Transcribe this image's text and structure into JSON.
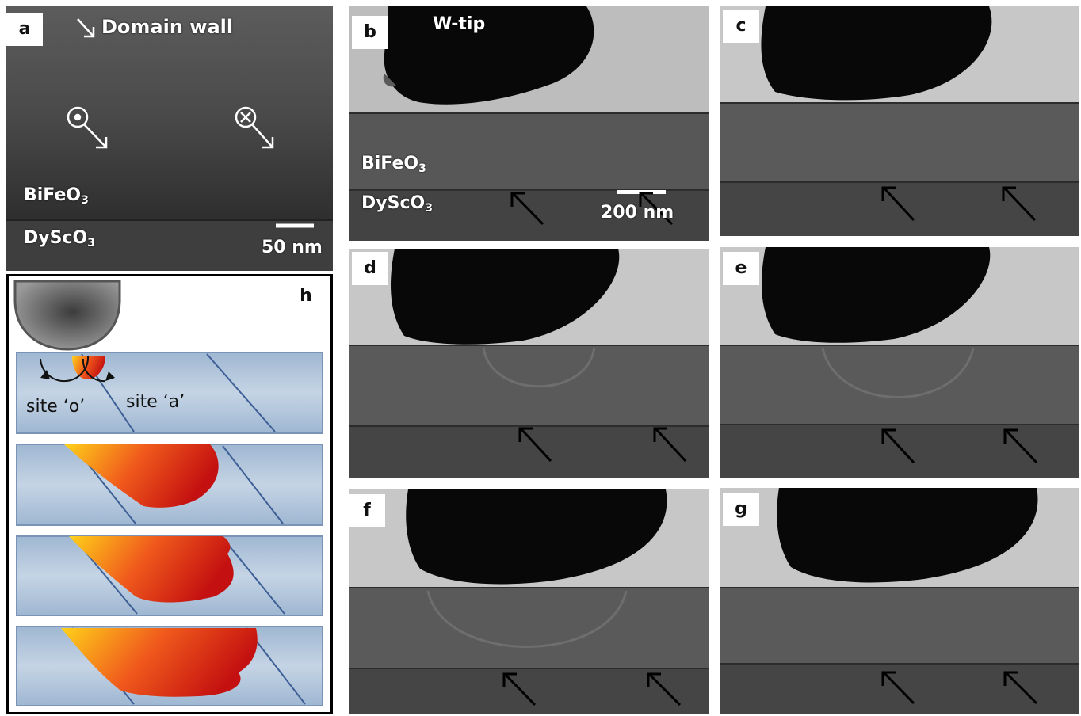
{
  "figure": {
    "panel_labels": [
      "a",
      "b",
      "c",
      "d",
      "e",
      "f",
      "g",
      "h"
    ],
    "panel_a": {
      "domain_wall_label": "Domain wall",
      "film": "BiFeO",
      "film_sub": "3",
      "substrate": "DyScO",
      "substrate_sub": "3",
      "scale_bar": "50 nm"
    },
    "panel_b": {
      "tip_label": "W-tip",
      "film": "BiFeO",
      "film_sub": "3",
      "substrate": "DyScO",
      "substrate_sub": "3",
      "scale_bar": "200 nm"
    },
    "panel_h": {
      "site_o": "site ‘o’",
      "site_a": "site ‘a’"
    },
    "colors": {
      "domain_gradient_start": "#ffd21a",
      "domain_gradient_end": "#c41010",
      "layer_fill": "#a9c0d9",
      "wall_line": "#3d5f95"
    }
  }
}
